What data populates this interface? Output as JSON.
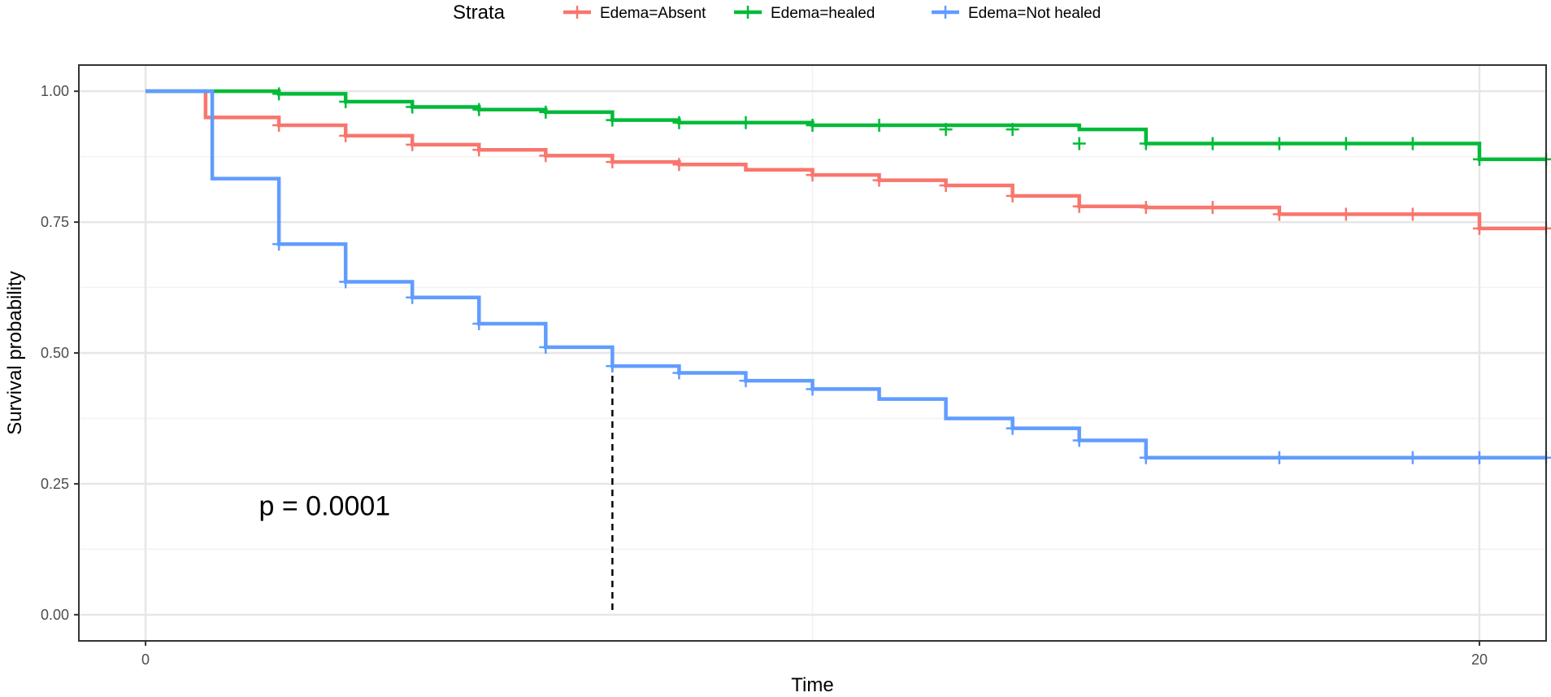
{
  "chart_data": {
    "type": "line",
    "step": "post",
    "xlabel": "Time",
    "ylabel": "Survival probability",
    "xlim": [
      -1,
      21
    ],
    "ylim": [
      -0.05,
      1.05
    ],
    "x_ticks": [
      0,
      20
    ],
    "x_tick_labels": [
      "0",
      "20"
    ],
    "x_minor_ticks": [
      10
    ],
    "y_ticks": [
      0,
      0.25,
      0.5,
      0.75,
      1.0
    ],
    "y_tick_labels": [
      "0.00",
      "0.25",
      "0.50",
      "0.75",
      "1.00"
    ],
    "y_minor_ticks": [
      0.125,
      0.375,
      0.625,
      0.875
    ],
    "grid": true,
    "legend": {
      "title": "Strata",
      "position": "top"
    },
    "annotation": "p = 0.0001",
    "annotation_position": [
      1.7,
      0.19
    ],
    "median_line": {
      "x": 7,
      "y_from": 0,
      "y_to": 0.5
    },
    "series": [
      {
        "name": "Edema=Absent",
        "color": "#F8766D",
        "x": [
          0,
          0.9,
          2,
          3,
          4,
          5,
          6,
          7,
          8,
          9,
          10,
          11,
          12,
          13,
          14,
          15,
          16,
          17,
          18,
          19,
          20,
          21
        ],
        "y": [
          1.0,
          0.95,
          0.935,
          0.915,
          0.898,
          0.888,
          0.877,
          0.865,
          0.86,
          0.85,
          0.84,
          0.83,
          0.82,
          0.8,
          0.78,
          0.778,
          0.778,
          0.765,
          0.765,
          0.765,
          0.738,
          0.738
        ],
        "censor": [
          [
            1,
            0.95
          ],
          [
            2,
            0.935
          ],
          [
            3,
            0.915
          ],
          [
            4,
            0.898
          ],
          [
            5,
            0.888
          ],
          [
            6,
            0.877
          ],
          [
            7,
            0.865
          ],
          [
            8,
            0.86
          ],
          [
            10,
            0.84
          ],
          [
            11,
            0.83
          ],
          [
            12,
            0.82
          ],
          [
            13,
            0.8
          ],
          [
            14,
            0.78
          ],
          [
            15,
            0.778
          ],
          [
            16,
            0.778
          ],
          [
            17,
            0.765
          ],
          [
            18,
            0.765
          ],
          [
            19,
            0.765
          ],
          [
            20,
            0.738
          ],
          [
            21,
            0.738
          ]
        ]
      },
      {
        "name": "Edema=healed",
        "color": "#00BA38",
        "x": [
          0,
          2,
          3,
          4,
          5,
          6,
          7,
          8,
          10,
          12,
          14,
          15,
          20,
          21
        ],
        "y": [
          1.0,
          0.995,
          0.98,
          0.97,
          0.965,
          0.96,
          0.945,
          0.94,
          0.935,
          0.935,
          0.927,
          0.9,
          0.87,
          0.87
        ],
        "censor": [
          [
            2,
            0.995
          ],
          [
            3,
            0.98
          ],
          [
            4,
            0.97
          ],
          [
            5,
            0.965
          ],
          [
            6,
            0.96
          ],
          [
            7,
            0.945
          ],
          [
            8,
            0.94
          ],
          [
            9,
            0.94
          ],
          [
            10,
            0.935
          ],
          [
            11,
            0.935
          ],
          [
            12,
            0.927
          ],
          [
            13,
            0.927
          ],
          [
            14,
            0.9
          ],
          [
            15,
            0.9
          ],
          [
            16,
            0.9
          ],
          [
            17,
            0.9
          ],
          [
            18,
            0.9
          ],
          [
            19,
            0.9
          ],
          [
            20,
            0.87
          ],
          [
            21,
            0.87
          ]
        ]
      },
      {
        "name": "Edema=Not healed",
        "color": "#619CFF",
        "x": [
          0,
          1,
          2,
          3,
          4,
          5,
          6,
          7,
          8,
          9,
          10,
          11,
          12,
          13,
          14,
          15,
          21
        ],
        "y": [
          1.0,
          0.833,
          0.708,
          0.636,
          0.606,
          0.556,
          0.511,
          0.475,
          0.462,
          0.447,
          0.431,
          0.412,
          0.375,
          0.356,
          0.333,
          0.3,
          0.3
        ],
        "censor": [
          [
            2,
            0.708
          ],
          [
            3,
            0.636
          ],
          [
            4,
            0.606
          ],
          [
            5,
            0.556
          ],
          [
            6,
            0.511
          ],
          [
            7,
            0.475
          ],
          [
            8,
            0.462
          ],
          [
            9,
            0.447
          ],
          [
            10,
            0.431
          ],
          [
            13,
            0.356
          ],
          [
            14,
            0.333
          ],
          [
            15,
            0.3
          ],
          [
            17,
            0.3
          ],
          [
            19,
            0.3
          ],
          [
            20,
            0.3
          ],
          [
            21,
            0.3
          ]
        ]
      }
    ]
  }
}
